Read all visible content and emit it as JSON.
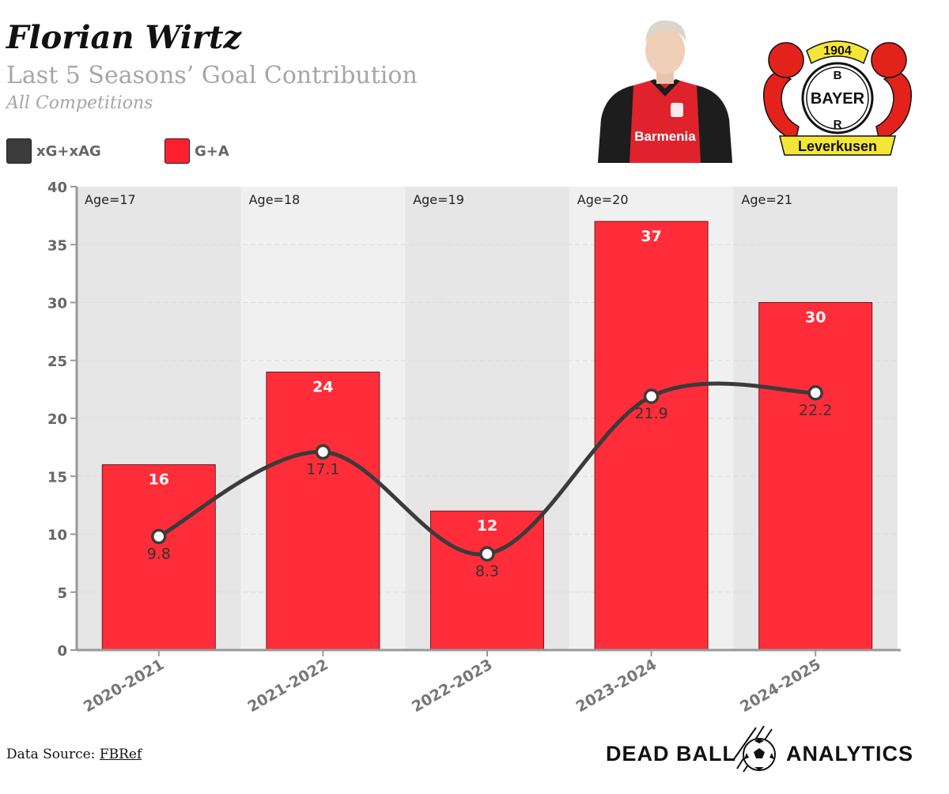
{
  "header": {
    "title": "Florian Wirtz",
    "subtitle": "Last 5 Seasons’ Goal Contribution",
    "subtitle2": "All Competitions"
  },
  "legend": [
    {
      "label": "xG+xAG",
      "color": "#3b3b3b"
    },
    {
      "label": "G+A",
      "color": "#ff1f2d"
    }
  ],
  "crest": {
    "year": "1904",
    "brand": "BAYER",
    "city": "Leverkusen"
  },
  "player_shirt_text": "Barmenia",
  "footer": {
    "source_prefix": "Data Source: ",
    "source_link": "FBRef",
    "brand_left": "DEAD BALL",
    "brand_right": "ANALYTICS"
  },
  "chart_data": {
    "type": "bar",
    "categories": [
      "2020-2021",
      "2021-2022",
      "2022-2023",
      "2023-2024",
      "2024-2025"
    ],
    "age_labels": [
      "Age=17",
      "Age=18",
      "Age=19",
      "Age=20",
      "Age=21"
    ],
    "series": [
      {
        "name": "G+A",
        "type": "bar",
        "values": [
          16,
          24,
          12,
          37,
          30
        ],
        "value_labels": [
          "16",
          "24",
          "12",
          "37",
          "30"
        ],
        "color": "#ff2d3a"
      },
      {
        "name": "xG+xAG",
        "type": "line",
        "values": [
          9.8,
          17.1,
          8.3,
          21.9,
          22.2
        ],
        "value_labels": [
          "9.8",
          "17.1",
          "8.3",
          "21.9",
          "22.2"
        ],
        "color": "#3b3b3b"
      }
    ],
    "ylim": [
      0,
      40
    ],
    "yticks": [
      "0",
      "5",
      "10",
      "15",
      "20",
      "25",
      "30",
      "35",
      "40"
    ],
    "grid": true,
    "legend_position": "top-left"
  }
}
